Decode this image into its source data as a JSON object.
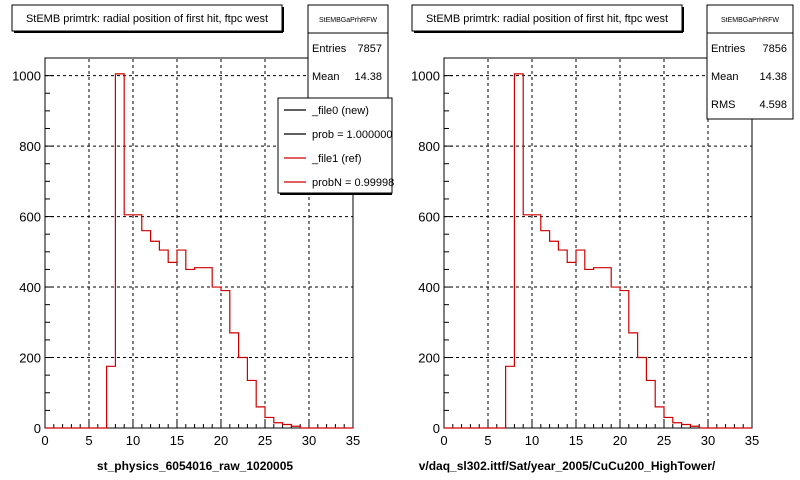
{
  "chart_data": [
    {
      "type": "bar",
      "title": "StEMB primtrk: radial position of first hit, ftpc west",
      "xlabel": "st_physics_6054016_raw_1020005",
      "ylabel": "",
      "xlim": [
        0,
        35
      ],
      "ylim": [
        0,
        1050
      ],
      "grid": true,
      "x_ticks": [
        "0",
        "5",
        "10",
        "15",
        "20",
        "25",
        "30",
        "35"
      ],
      "y_ticks": [
        "0",
        "200",
        "400",
        "600",
        "800",
        "1000"
      ],
      "bin_edges": [
        0,
        1,
        2,
        3,
        4,
        5,
        6,
        7,
        8,
        9,
        10,
        11,
        12,
        13,
        14,
        15,
        16,
        17,
        18,
        19,
        20,
        21,
        22,
        23,
        24,
        25,
        26,
        27,
        28,
        29,
        30,
        31,
        32,
        33,
        34,
        35
      ],
      "series": [
        {
          "name": "_file1 (ref)",
          "color": "#cc0000",
          "values": [
            0,
            0,
            0,
            0,
            0,
            0,
            0,
            175,
            1005,
            605,
            605,
            560,
            530,
            505,
            470,
            505,
            450,
            455,
            455,
            400,
            390,
            270,
            200,
            135,
            60,
            30,
            15,
            10,
            5,
            0,
            0,
            0,
            0,
            0,
            0
          ]
        }
      ],
      "stats_box": {
        "title": "StEMBGaPrhRFW",
        "rows": [
          {
            "label": "Entries",
            "value": "7857"
          },
          {
            "label": "Mean",
            "value": "14.38"
          }
        ]
      },
      "legend": {
        "placement": "top-right",
        "entries": [
          {
            "label": "_file0 (new)",
            "color": "#000000"
          },
          {
            "label": "prob = 1.000000",
            "color": "#000000"
          },
          {
            "label": "_file1 (ref)",
            "color": "#cc0000"
          },
          {
            "label": "probN = 0.99998",
            "color": "#cc0000"
          }
        ]
      }
    },
    {
      "type": "bar",
      "title": "StEMB primtrk: radial position of first hit, ftpc west",
      "xlabel": "v/daq_sl302.ittf/Sat/year_2005/CuCu200_HighTower/",
      "ylabel": "",
      "xlim": [
        0,
        35
      ],
      "ylim": [
        0,
        1050
      ],
      "grid": true,
      "x_ticks": [
        "0",
        "5",
        "10",
        "15",
        "20",
        "25",
        "30",
        "35"
      ],
      "y_ticks": [
        "0",
        "200",
        "400",
        "600",
        "800",
        "1000"
      ],
      "bin_edges": [
        0,
        1,
        2,
        3,
        4,
        5,
        6,
        7,
        8,
        9,
        10,
        11,
        12,
        13,
        14,
        15,
        16,
        17,
        18,
        19,
        20,
        21,
        22,
        23,
        24,
        25,
        26,
        27,
        28,
        29,
        30,
        31,
        32,
        33,
        34,
        35
      ],
      "series": [
        {
          "name": "",
          "color": "#cc0000",
          "values": [
            0,
            0,
            0,
            0,
            0,
            0,
            0,
            175,
            1005,
            605,
            605,
            560,
            530,
            505,
            470,
            505,
            450,
            455,
            455,
            400,
            390,
            270,
            200,
            135,
            60,
            30,
            15,
            10,
            5,
            0,
            0,
            0,
            0,
            0,
            0
          ]
        }
      ],
      "stats_box": {
        "title": "StEMBGaPrhRFW",
        "rows": [
          {
            "label": "Entries",
            "value": "7856"
          },
          {
            "label": "Mean",
            "value": "14.38"
          },
          {
            "label": "RMS",
            "value": "4.598"
          }
        ]
      }
    }
  ]
}
